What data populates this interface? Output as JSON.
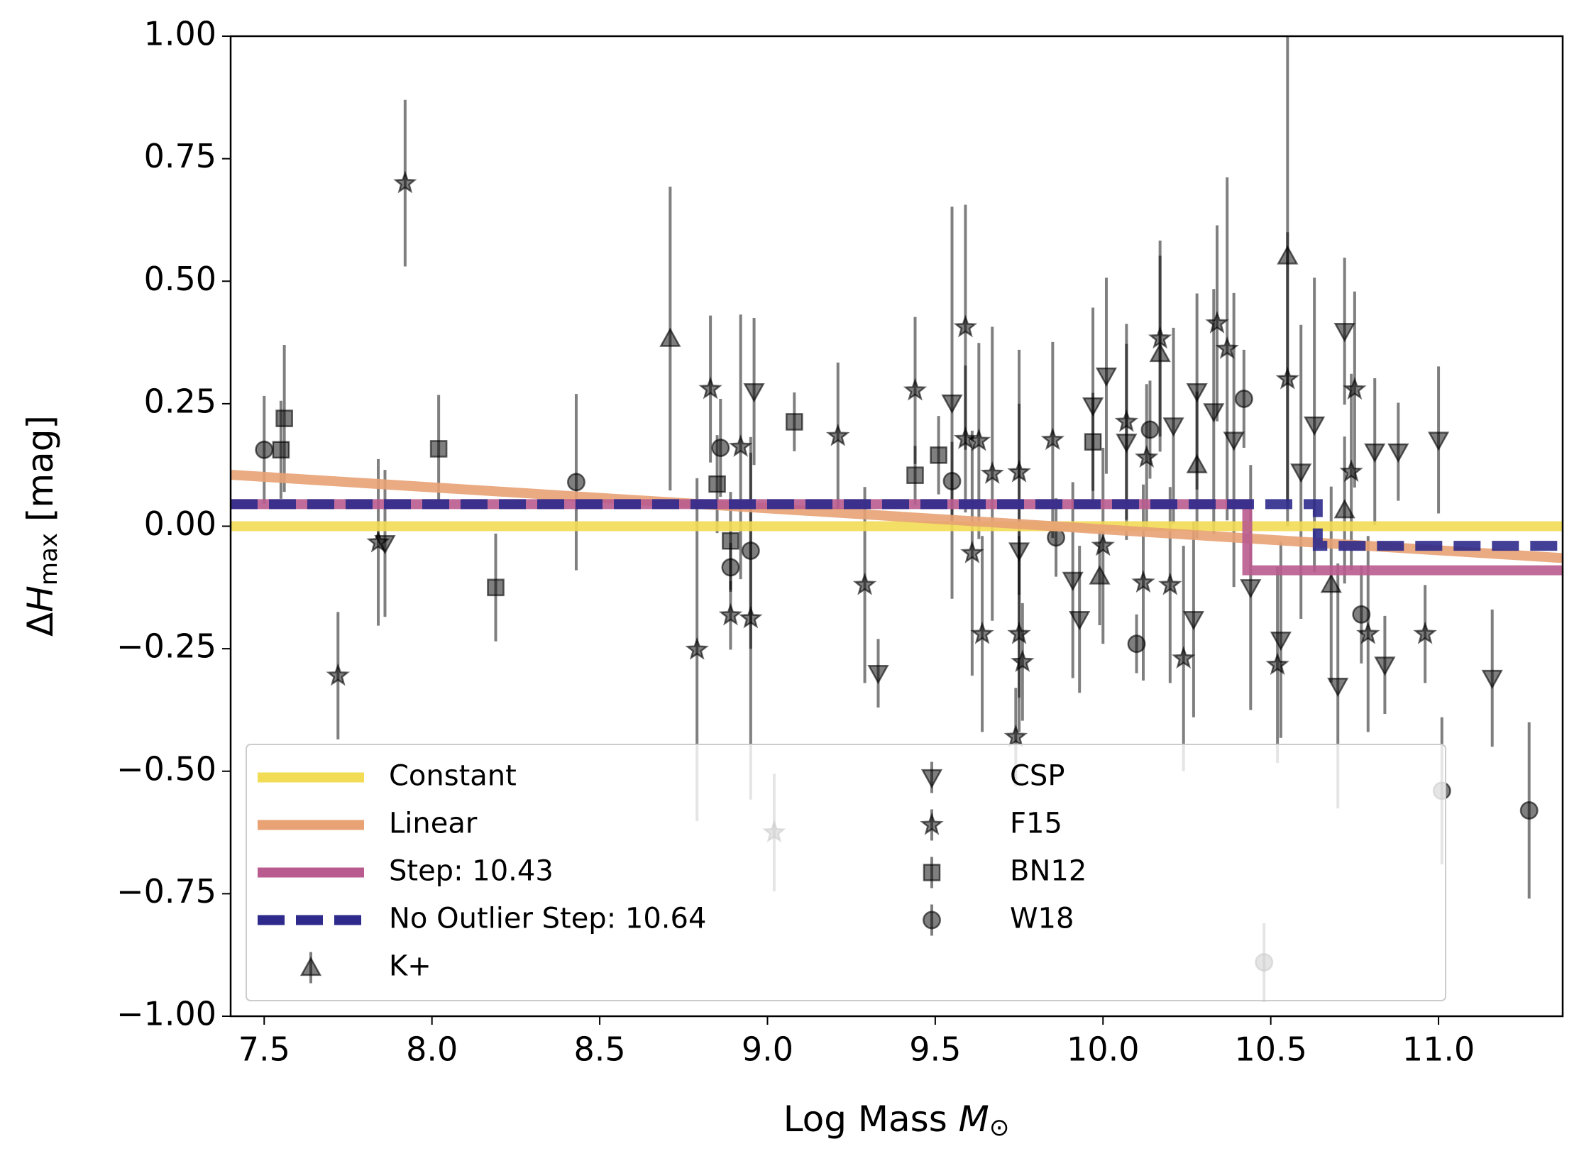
{
  "chart_data": {
    "type": "scatter",
    "xlabel": [
      "Log Mass ",
      "M",
      "⊙"
    ],
    "ylabel": [
      "Δ",
      "H",
      "max",
      " [mag]"
    ],
    "xlim": [
      7.4,
      11.37
    ],
    "ylim": [
      -1.0,
      1.0
    ],
    "xticks": [
      7.5,
      {
        "value": 8.0,
        "label": "8.0"
      },
      8.5,
      {
        "value": 9.0,
        "label": "9.0"
      },
      9.5,
      {
        "value": 10.0,
        "label": "10.0"
      },
      10.5,
      {
        "value": 11.0,
        "label": "11.0"
      }
    ],
    "yticks": [
      {
        "value": 1.0,
        "label": "1.00"
      },
      {
        "value": 0.75,
        "label": "0.75"
      },
      {
        "value": 0.5,
        "label": "0.50"
      },
      {
        "value": 0.25,
        "label": "0.25"
      },
      {
        "value": 0.0,
        "label": "0.00"
      },
      {
        "value": -0.25,
        "label": "−0.25"
      },
      {
        "value": -0.5,
        "label": "−0.50"
      },
      {
        "value": -0.75,
        "label": "−0.75"
      },
      {
        "value": -1.0,
        "label": "−1.00"
      }
    ],
    "grid": false,
    "legend": {
      "loc": "lower left",
      "ncol": 2
    },
    "series": [
      {
        "name": "Constant",
        "color": "#f2dc55",
        "linestyle": "solid",
        "x": [
          7.4,
          11.37
        ],
        "values": [
          0.0,
          0.0
        ]
      },
      {
        "name": "Linear",
        "color": "#e8a274",
        "linestyle": "solid",
        "x": [
          7.4,
          11.37
        ],
        "values": [
          0.105,
          -0.065
        ]
      },
      {
        "name": "Step: 10.43",
        "color": "#b95b8e",
        "linestyle": "solid",
        "x": [
          7.4,
          10.43,
          10.43,
          11.37
        ],
        "values": [
          0.045,
          0.045,
          -0.09,
          -0.09
        ]
      },
      {
        "name": "No Outlier Step: 10.64",
        "color": "#2d2a8c",
        "linestyle": "dashed",
        "x": [
          7.4,
          10.64,
          10.64,
          11.37
        ],
        "values": [
          0.045,
          0.045,
          -0.04,
          -0.04
        ]
      },
      {
        "name": "K+",
        "color": "#000000",
        "marker": "^",
        "x": [
          8.71,
          9.99,
          10.17,
          10.28,
          10.55,
          10.68,
          10.72
        ],
        "values": [
          0.383,
          -0.102,
          0.352,
          0.125,
          0.551,
          -0.119,
          0.033
        ],
        "errors": [
          0.31,
          0.1,
          0.2,
          0.15,
          0.5,
          0.2,
          0.15
        ]
      },
      {
        "name": "CSP",
        "color": "#000000",
        "marker": "v",
        "x": [
          7.86,
          8.96,
          9.33,
          9.55,
          9.75,
          9.91,
          9.93,
          9.97,
          10.01,
          10.07,
          10.21,
          10.27,
          10.28,
          10.33,
          10.39,
          10.44,
          10.53,
          10.59,
          10.63,
          10.7,
          10.72,
          10.81,
          10.84,
          10.88,
          11.0,
          11.16
        ],
        "values": [
          -0.035,
          0.275,
          -0.3,
          0.252,
          -0.05,
          -0.11,
          -0.19,
          0.246,
          0.307,
          0.172,
          0.205,
          -0.19,
          0.275,
          0.234,
          0.176,
          -0.125,
          -0.232,
          0.111,
          0.207,
          -0.326,
          0.398,
          0.152,
          -0.283,
          0.152,
          0.176,
          -0.31
        ],
        "errors": [
          0.15,
          0.15,
          0.07,
          0.4,
          0.3,
          0.2,
          0.15,
          0.2,
          0.2,
          0.2,
          0.2,
          0.2,
          0.2,
          0.25,
          0.3,
          0.25,
          0.2,
          0.3,
          0.3,
          0.25,
          0.15,
          0.15,
          0.1,
          0.1,
          0.15,
          0.14
        ]
      },
      {
        "name": "F15",
        "color": "#000000",
        "marker": "*",
        "x": [
          7.92,
          7.72,
          7.84,
          8.79,
          8.83,
          8.89,
          8.92,
          8.95,
          9.02,
          9.21,
          9.29,
          9.44,
          9.59,
          9.59,
          9.61,
          9.63,
          9.64,
          9.67,
          9.74,
          9.75,
          9.76,
          9.75,
          9.85,
          10.0,
          10.07,
          10.12,
          10.13,
          10.17,
          10.2,
          10.24,
          10.34,
          10.37,
          10.52,
          10.55,
          10.74,
          10.75,
          10.79,
          10.96
        ],
        "values": [
          0.7,
          -0.305,
          -0.033,
          -0.252,
          0.28,
          -0.182,
          0.162,
          -0.188,
          -0.625,
          0.184,
          -0.12,
          0.277,
          0.178,
          0.406,
          -0.055,
          0.174,
          -0.22,
          0.107,
          -0.43,
          -0.22,
          -0.277,
          0.11,
          0.176,
          -0.04,
          0.213,
          -0.115,
          0.14,
          0.383,
          -0.12,
          -0.27,
          0.414,
          0.362,
          -0.283,
          0.3,
          0.111,
          0.279,
          -0.22,
          -0.22
        ],
        "errors": [
          0.17,
          0.13,
          0.17,
          0.35,
          0.15,
          0.07,
          0.27,
          0.37,
          0.12,
          0.15,
          0.2,
          0.15,
          0.15,
          0.25,
          0.25,
          0.2,
          0.2,
          0.3,
          0.1,
          0.2,
          0.12,
          0.25,
          0.2,
          0.2,
          0.2,
          0.2,
          0.15,
          0.2,
          0.2,
          0.23,
          0.2,
          0.35,
          0.2,
          0.3,
          0.2,
          0.2,
          0.2,
          0.1
        ]
      },
      {
        "name": "BN12",
        "color": "#000000",
        "marker": "s",
        "x": [
          7.55,
          7.56,
          8.02,
          8.19,
          8.85,
          8.89,
          9.08,
          9.44,
          9.51,
          9.97
        ],
        "values": [
          0.156,
          0.22,
          0.158,
          -0.125,
          0.086,
          -0.03,
          0.213,
          0.104,
          0.145,
          0.172
        ],
        "errors": [
          0.1,
          0.15,
          0.11,
          0.11,
          0.1,
          0.1,
          0.06,
          0.06,
          0.08,
          0.1
        ]
      },
      {
        "name": "W18",
        "color": "#000000",
        "marker": "o",
        "x": [
          7.5,
          8.43,
          8.86,
          8.89,
          8.95,
          9.55,
          9.86,
          10.1,
          10.14,
          10.42,
          10.48,
          10.77,
          11.01,
          11.27
        ],
        "values": [
          0.156,
          0.09,
          0.16,
          -0.084,
          -0.05,
          0.092,
          -0.023,
          -0.24,
          0.197,
          0.26,
          -0.89,
          -0.18,
          -0.54,
          -0.58
        ],
        "errors": [
          0.11,
          0.18,
          0.1,
          0.05,
          0.2,
          0.08,
          0.08,
          0.06,
          0.1,
          0.1,
          0.08,
          0.1,
          0.15,
          0.18
        ]
      }
    ]
  }
}
